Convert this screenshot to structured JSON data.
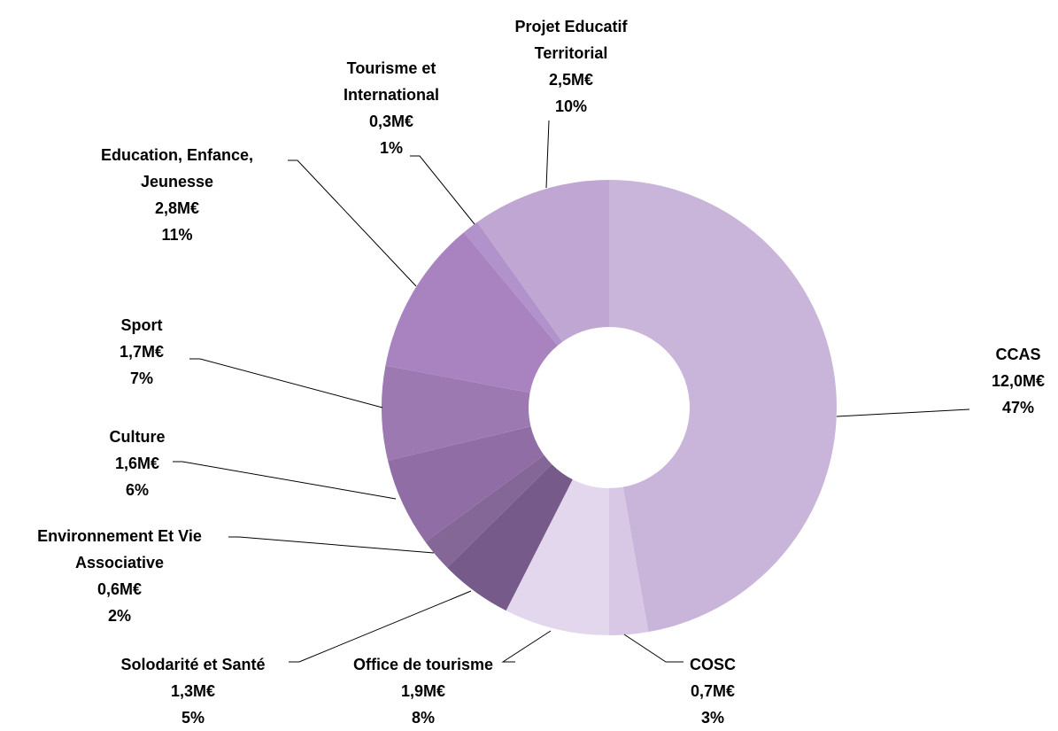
{
  "chart_data": {
    "type": "donut",
    "categories": [
      "CCAS",
      "COSC",
      "Office de tourisme",
      "Solodarité et Santé",
      "Environnement Et Vie Associative",
      "Culture",
      "Sport",
      "Education, Enfance, Jeunesse",
      "Tourisme et International",
      "Projet Educatif Territorial"
    ],
    "values": [
      12.0,
      0.7,
      1.9,
      1.3,
      0.6,
      1.6,
      1.7,
      2.8,
      0.3,
      2.5
    ],
    "value_labels": [
      "12,0M€",
      "0,7M€",
      "1,9M€",
      "1,3M€",
      "0,6M€",
      "1,6M€",
      "1,7M€",
      "2,8M€",
      "0,3M€",
      "2,5M€"
    ],
    "percentages": [
      47,
      3,
      8,
      5,
      2,
      6,
      7,
      11,
      1,
      10
    ],
    "percentage_labels": [
      "47%",
      "3%",
      "8%",
      "5%",
      "2%",
      "6%",
      "7%",
      "11%",
      "1%",
      "10%"
    ],
    "colors": [
      "#c9b4da",
      "#d9c8e5",
      "#e3d7ed",
      "#765a89",
      "#856797",
      "#906ea5",
      "#9c7ab1",
      "#a883bf",
      "#b292ca",
      "#c0a6d3"
    ]
  }
}
